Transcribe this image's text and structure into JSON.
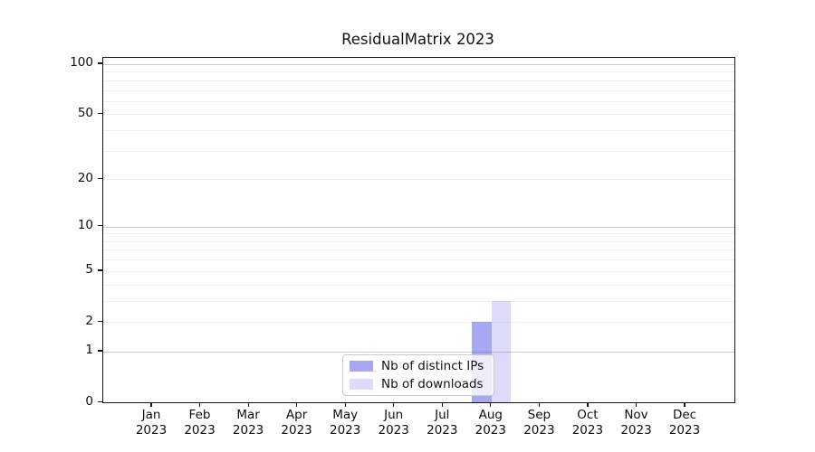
{
  "title": "ResidualMatrix 2023",
  "chart_data": {
    "type": "bar",
    "title": "ResidualMatrix 2023",
    "categories": [
      "Jan",
      "Feb",
      "Mar",
      "Apr",
      "May",
      "Jun",
      "Jul",
      "Aug",
      "Sep",
      "Oct",
      "Nov",
      "Dec"
    ],
    "category_year": "2023",
    "series": [
      {
        "name": "Nb of distinct IPs",
        "color": "rgba(80,80,230,0.5)",
        "values": [
          0,
          0,
          0,
          0,
          0,
          0,
          0,
          2,
          0,
          0,
          0,
          0
        ]
      },
      {
        "name": "Nb of downloads",
        "color": "rgba(80,80,230,0.2)",
        "values": [
          0,
          0,
          0,
          0,
          0,
          0,
          0,
          3,
          0,
          0,
          0,
          0
        ]
      }
    ],
    "y_scale": "log10(1+v)",
    "y_ticks": [
      0,
      1,
      2,
      5,
      10,
      20,
      50,
      100
    ],
    "y_minor_gridlines": [
      2,
      3,
      4,
      5,
      6,
      7,
      8,
      9,
      20,
      30,
      40,
      50,
      60,
      70,
      80,
      90
    ],
    "y_major_gridlines": [
      1,
      10,
      100
    ],
    "ylim": [
      0,
      109
    ],
    "xlabel": "",
    "ylabel": "",
    "grid": true,
    "legend_position": "lower-center",
    "colors": {
      "bar_distinct_ips": "#a9a9f1",
      "bar_downloads": "#dedef8",
      "major_grid": "#c9c9c9",
      "minor_grid": "#efefef",
      "spine": "#151515"
    }
  }
}
